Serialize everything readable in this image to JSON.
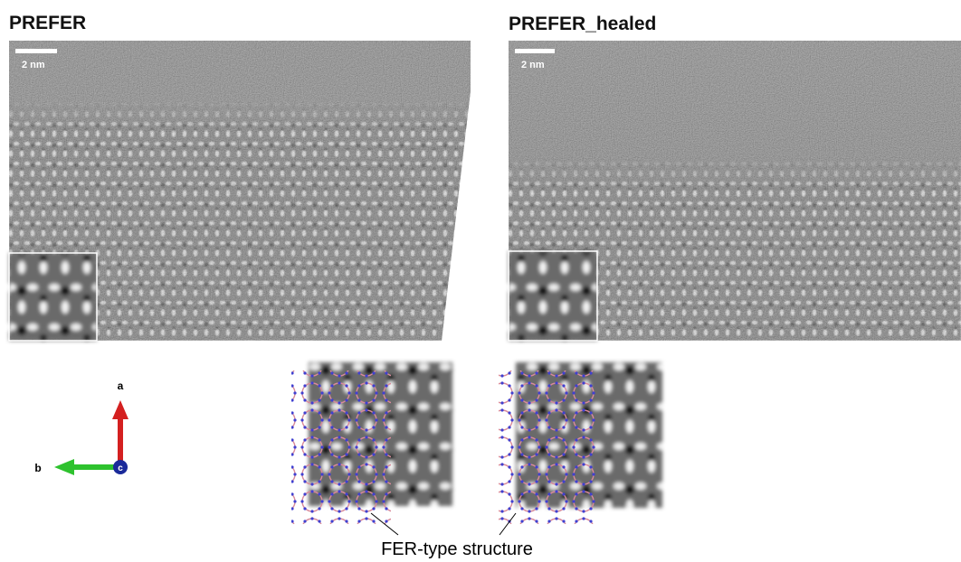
{
  "panels": [
    {
      "title": "PREFER",
      "scale_bar": "2 nm"
    },
    {
      "title": "PREFER_healed",
      "scale_bar": "2 nm"
    }
  ],
  "axes": {
    "a": "a",
    "b": "b",
    "c": "c"
  },
  "caption": "FER-type structure"
}
